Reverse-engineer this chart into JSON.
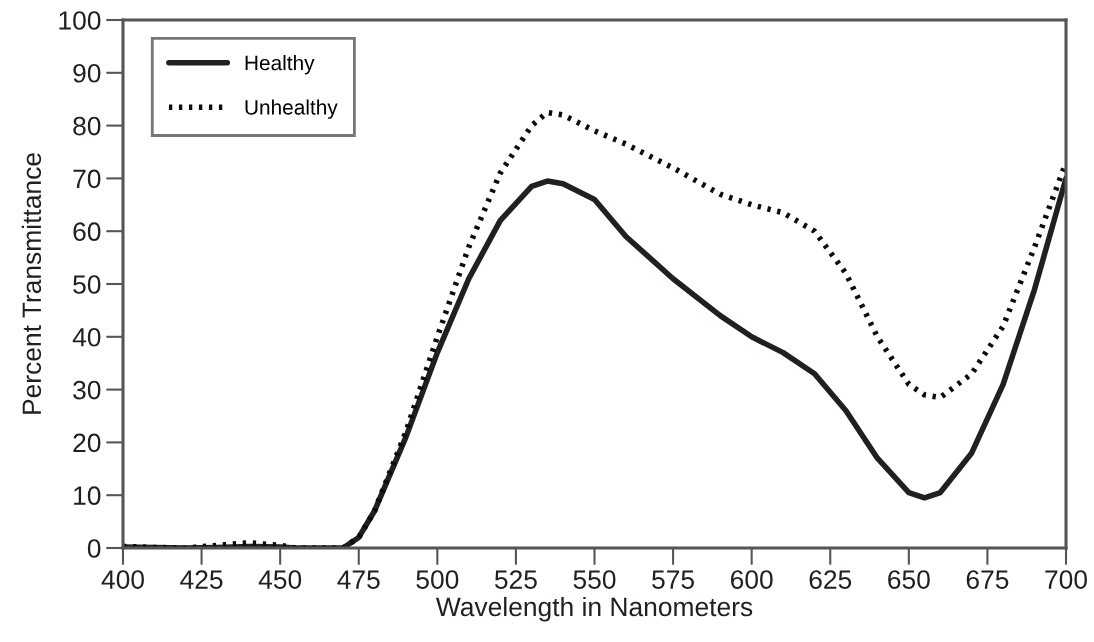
{
  "chart_data": {
    "type": "line",
    "xlabel": "Wavelength in Nanometers",
    "ylabel": "Percent Transmittance",
    "x": [
      400,
      410,
      420,
      430,
      440,
      450,
      455,
      460,
      470,
      475,
      480,
      490,
      500,
      510,
      520,
      530,
      535,
      540,
      550,
      560,
      575,
      590,
      600,
      610,
      620,
      630,
      640,
      650,
      655,
      660,
      670,
      680,
      690,
      700
    ],
    "series": [
      {
        "name": "Healthy",
        "color": "#231f20",
        "line_style": "solid",
        "values": [
          0.2,
          0.1,
          0,
          0.1,
          0.3,
          0.2,
          0,
          0,
          0,
          2,
          7,
          21,
          37,
          51,
          62,
          68.5,
          69.5,
          69,
          66,
          59,
          51,
          44,
          40,
          37,
          33,
          26,
          17,
          10.5,
          9.5,
          10.5,
          18,
          31,
          49,
          70
        ]
      },
      {
        "name": "Unhealthy",
        "color": "#0c0c0c",
        "line_style": "dotted",
        "values": [
          0.3,
          0.1,
          0,
          0.5,
          1,
          0.5,
          0,
          0,
          0,
          2,
          7,
          22,
          40,
          57,
          71,
          80,
          82.5,
          82,
          79,
          76.5,
          72,
          67,
          65,
          63.5,
          60,
          52,
          40,
          31,
          29,
          28.5,
          33,
          42,
          57,
          73
        ]
      }
    ],
    "xlim": [
      400,
      700
    ],
    "xticks": [
      400,
      425,
      450,
      475,
      500,
      525,
      550,
      575,
      600,
      625,
      650,
      675,
      700
    ],
    "ylim": [
      0,
      100
    ],
    "yticks": [
      0,
      10,
      20,
      30,
      40,
      50,
      60,
      70,
      80,
      90,
      100
    ],
    "grid": false,
    "legend": "top left",
    "marker": "none"
  }
}
